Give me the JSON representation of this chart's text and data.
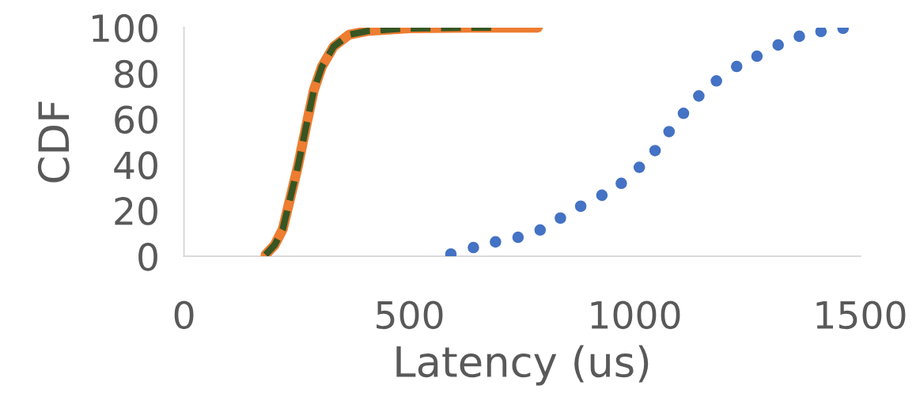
{
  "chart_data": {
    "type": "line",
    "xlabel": "Latency (us)",
    "ylabel": "CDF",
    "xlim": [
      0,
      1500
    ],
    "xticks": [
      0,
      500,
      1000,
      1500
    ],
    "ylim": [
      0,
      100
    ],
    "yticks": [
      0,
      20,
      40,
      60,
      80,
      100
    ],
    "grid": false,
    "legend": false,
    "series": [
      {
        "type": "scatter",
        "color": "#4472c4",
        "marker": "circle",
        "x": [
          592,
          642,
          691,
          741,
          790,
          835,
          880,
          927,
          970,
          1010,
          1045,
          1076,
          1108,
          1142,
          1181,
          1226,
          1271,
          1318,
          1365,
          1413,
          1462
        ],
        "values": [
          1,
          3.8,
          6.3,
          8.3,
          11.5,
          16.7,
          21.9,
          26.7,
          31.9,
          38.9,
          46.2,
          54.5,
          62.5,
          70.1,
          76.7,
          83,
          87.5,
          92.4,
          96.2,
          98.3,
          99.7
        ]
      },
      {
        "color": "#ed7d31",
        "line_style": "solid",
        "marker": "none",
        "x": [
          181,
          201,
          219,
          236,
          253,
          271,
          288,
          306,
          332,
          366,
          410,
          497,
          635,
          785
        ],
        "values": [
          0.7,
          4.9,
          11.8,
          25.7,
          39.6,
          56.9,
          72.6,
          83,
          91.7,
          96.9,
          98.6,
          99.7,
          100,
          100
        ]
      },
      {
        "color": "#375623",
        "line_style": "dashed",
        "marker": "none",
        "x": [
          181,
          201,
          219,
          236,
          253,
          271,
          288,
          306,
          332,
          366,
          410,
          497,
          635,
          682
        ],
        "values": [
          0.7,
          4.9,
          11.8,
          25.7,
          39.6,
          56.9,
          72.6,
          83,
          91.7,
          96.9,
          98.6,
          99.7,
          100,
          100
        ]
      }
    ]
  }
}
